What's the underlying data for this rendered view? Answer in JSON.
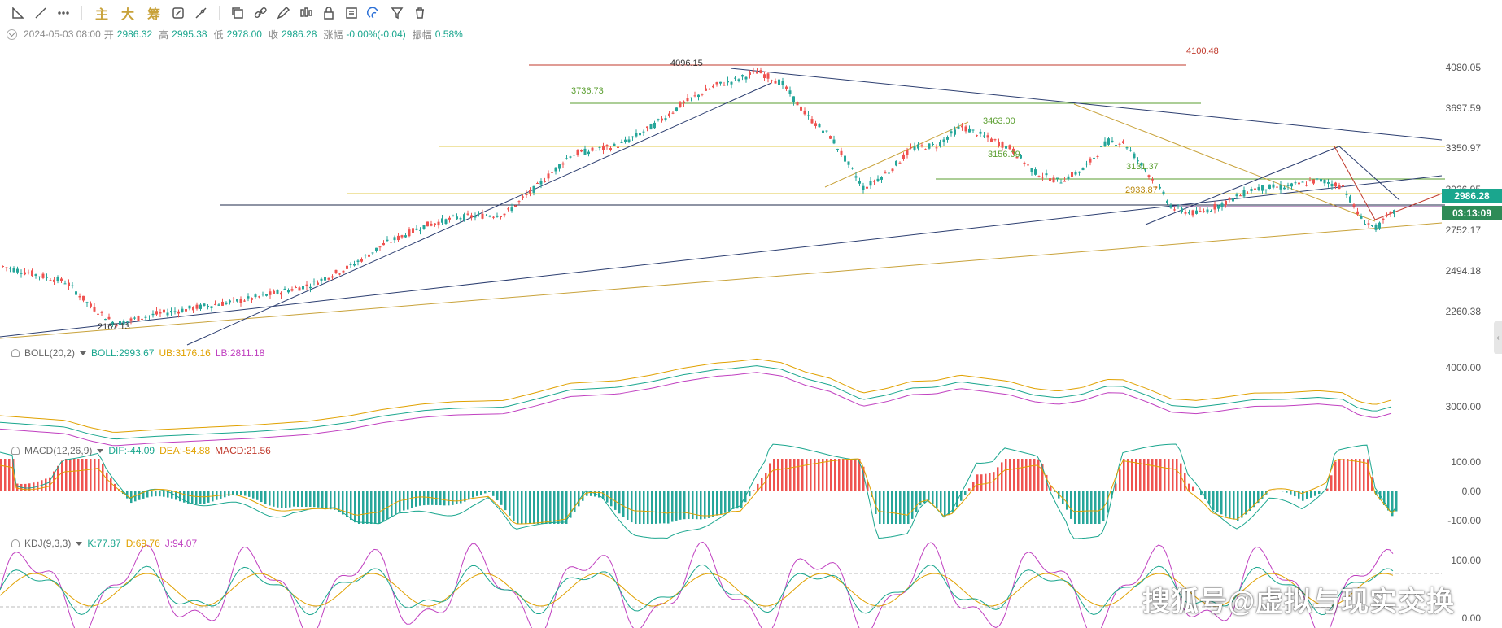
{
  "toolbar": {
    "text_buttons": [
      "主",
      "大",
      "筹"
    ]
  },
  "quote": {
    "datetime": "2024-05-03 08:00",
    "open_label": "开",
    "open": "2986.32",
    "high_label": "高",
    "high": "2995.38",
    "low_label": "低",
    "low": "2978.00",
    "close_label": "收",
    "close": "2986.28",
    "change_label": "涨幅",
    "change": "-0.00%(-0.04)",
    "amplitude_label": "振幅",
    "amplitude": "0.58%"
  },
  "main_axis": [
    "4080.05",
    "3697.59",
    "3350.97",
    "3026.95",
    "2752.17",
    "2494.18",
    "2260.38"
  ],
  "price_tag": {
    "price": "2986.28",
    "countdown": "03:13:09"
  },
  "annotations": {
    "peak": "4096.15",
    "top_line": "4100.48",
    "level_3736": "3736.73",
    "level_3463": "3463.00",
    "level_3156": "3156.09",
    "level_3131": "3131.37",
    "level_2933": "2933.87",
    "low": "2167.13"
  },
  "boll": {
    "name": "BOLL(20,2)",
    "boll_label": "BOLL:2993.67",
    "ub_label": "UB:3176.16",
    "lb_label": "LB:2811.18",
    "axis": [
      "4000.00",
      "3000.00"
    ]
  },
  "macd": {
    "name": "MACD(12,26,9)",
    "dif_label": "DIF:-44.09",
    "dea_label": "DEA:-54.88",
    "macd_label": "MACD:21.56",
    "axis": [
      "100.00",
      "0.00",
      "-100.00"
    ]
  },
  "kdj": {
    "name": "KDJ(9,3,3)",
    "k_label": "K:77.87",
    "d_label": "D:69.76",
    "j_label": "J:94.07",
    "axis": [
      "100.00",
      "0.00"
    ]
  },
  "watermark": "搜狐号@虚拟与现实交换",
  "colors": {
    "up": "#ef5350",
    "down": "#26a69a",
    "accent": "#c8a23a",
    "tag_green": "#1aa68e",
    "tag_dark": "#2e8b57"
  }
}
